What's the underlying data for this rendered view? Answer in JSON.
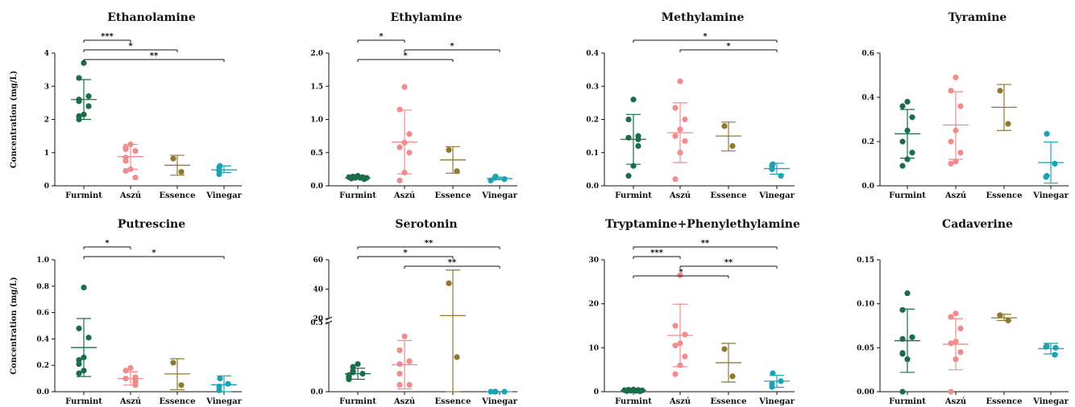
{
  "chart_data": [
    {
      "type": "scatter",
      "title": "Ethanolamine",
      "ylabel": "Concentration (mg/L)",
      "ylim": [
        0,
        4
      ],
      "yticks": [
        0,
        1,
        2,
        3,
        4
      ],
      "categories": [
        "Furmint",
        "Aszú",
        "Essence",
        "Vinegar"
      ],
      "groups": [
        {
          "points": [
            3.7,
            3.25,
            2.7,
            2.6,
            2.55,
            2.4,
            2.15,
            2.1,
            2.0
          ],
          "mean": 2.6,
          "sd_low": 2.0,
          "sd_high": 3.2
        },
        {
          "points": [
            1.25,
            1.15,
            1.1,
            1.05,
            0.85,
            0.75,
            0.5,
            0.45,
            0.25
          ],
          "mean": 0.88,
          "sd_low": 0.5,
          "sd_high": 1.25
        },
        {
          "points": [
            0.82,
            0.42
          ],
          "mean": 0.62,
          "sd_low": 0.32,
          "sd_high": 0.92
        },
        {
          "points": [
            0.6,
            0.55,
            0.45,
            0.35
          ],
          "mean": 0.48,
          "sd_low": 0.4,
          "sd_high": 0.6
        }
      ],
      "significance": [
        {
          "from": "Furmint",
          "to": "Aszú",
          "label": "***"
        },
        {
          "from": "Furmint",
          "to": "Essence",
          "label": "*"
        },
        {
          "from": "Furmint",
          "to": "Vinegar",
          "label": "**"
        }
      ]
    },
    {
      "type": "scatter",
      "title": "Ethylamine",
      "ylabel": "",
      "ylim": [
        0,
        2
      ],
      "yticks": [
        0.0,
        0.5,
        1.0,
        1.5,
        2.0
      ],
      "categories": [
        "Furmint",
        "Aszú",
        "Essence",
        "Vinegar"
      ],
      "groups": [
        {
          "points": [
            0.15,
            0.14,
            0.13,
            0.13,
            0.12,
            0.12,
            0.12,
            0.11,
            0.1
          ],
          "mean": 0.12,
          "sd_low": 0.11,
          "sd_high": 0.14
        },
        {
          "points": [
            1.49,
            1.15,
            0.78,
            0.65,
            0.58,
            0.5,
            0.2,
            0.08
          ],
          "mean": 0.66,
          "sd_low": 0.18,
          "sd_high": 1.14
        },
        {
          "points": [
            0.54,
            0.22
          ],
          "mean": 0.39,
          "sd_low": 0.19,
          "sd_high": 0.59
        },
        {
          "points": [
            0.14,
            0.12,
            0.1,
            0.08
          ],
          "mean": 0.11,
          "sd_low": 0.09,
          "sd_high": 0.13
        }
      ],
      "significance": [
        {
          "from": "Furmint",
          "to": "Aszú",
          "label": "*"
        },
        {
          "from": "Aszú",
          "to": "Vinegar",
          "label": "*"
        },
        {
          "from": "Furmint",
          "to": "Essence",
          "label": "*"
        }
      ]
    },
    {
      "type": "scatter",
      "title": "Methylamine",
      "ylabel": "",
      "ylim": [
        0,
        0.4
      ],
      "yticks": [
        0.0,
        0.1,
        0.2,
        0.3,
        0.4
      ],
      "categories": [
        "Furmint",
        "Aszú",
        "Essence",
        "Vinegar"
      ],
      "groups": [
        {
          "points": [
            0.26,
            0.2,
            0.15,
            0.145,
            0.14,
            0.12,
            0.06,
            0.03
          ],
          "mean": 0.14,
          "sd_low": 0.065,
          "sd_high": 0.215
        },
        {
          "points": [
            0.315,
            0.235,
            0.2,
            0.17,
            0.15,
            0.135,
            0.1,
            0.02
          ],
          "mean": 0.16,
          "sd_low": 0.07,
          "sd_high": 0.25
        },
        {
          "points": [
            0.18,
            0.12
          ],
          "mean": 0.15,
          "sd_low": 0.105,
          "sd_high": 0.192
        },
        {
          "points": [
            0.065,
            0.06,
            0.05,
            0.03
          ],
          "mean": 0.052,
          "sd_low": 0.035,
          "sd_high": 0.068
        }
      ],
      "significance": [
        {
          "from": "Furmint",
          "to": "Vinegar",
          "label": "*"
        },
        {
          "from": "Aszú",
          "to": "Vinegar",
          "label": "*"
        }
      ]
    },
    {
      "type": "scatter",
      "title": "Tyramine",
      "ylabel": "",
      "ylim": [
        0,
        0.6
      ],
      "yticks": [
        0.0,
        0.2,
        0.4,
        0.6
      ],
      "categories": [
        "Furmint",
        "Aszú",
        "Essence",
        "Vinegar"
      ],
      "groups": [
        {
          "points": [
            0.38,
            0.36,
            0.31,
            0.25,
            0.2,
            0.15,
            0.12,
            0.09
          ],
          "mean": 0.235,
          "sd_low": 0.125,
          "sd_high": 0.345
        },
        {
          "points": [
            0.49,
            0.43,
            0.36,
            0.25,
            0.2,
            0.15,
            0.11,
            0.1
          ],
          "mean": 0.275,
          "sd_low": 0.12,
          "sd_high": 0.425
        },
        {
          "points": [
            0.43,
            0.28
          ],
          "mean": 0.355,
          "sd_low": 0.25,
          "sd_high": 0.458
        },
        {
          "points": [
            0.235,
            0.1,
            0.045,
            0.04
          ],
          "mean": 0.105,
          "sd_low": 0.012,
          "sd_high": 0.198
        }
      ],
      "significance": []
    },
    {
      "type": "scatter",
      "title": "Putrescine",
      "ylabel": "Concentration (mg/L)",
      "ylim": [
        0,
        1
      ],
      "yticks": [
        0.0,
        0.2,
        0.4,
        0.6,
        0.8,
        1.0
      ],
      "categories": [
        "Furmint",
        "Aszú",
        "Essence",
        "Vinegar"
      ],
      "groups": [
        {
          "points": [
            0.79,
            0.48,
            0.41,
            0.26,
            0.24,
            0.21,
            0.16,
            0.14
          ],
          "mean": 0.335,
          "sd_low": 0.115,
          "sd_high": 0.555
        },
        {
          "points": [
            0.18,
            0.16,
            0.11,
            0.1,
            0.09,
            0.07,
            0.06,
            0.05
          ],
          "mean": 0.1,
          "sd_low": 0.05,
          "sd_high": 0.15
        },
        {
          "points": [
            0.22,
            0.05
          ],
          "mean": 0.135,
          "sd_low": 0.015,
          "sd_high": 0.25
        },
        {
          "points": [
            0.1,
            0.06,
            0.04,
            0.01
          ],
          "mean": 0.053,
          "sd_low": 0.0,
          "sd_high": 0.12
        }
      ],
      "significance": [
        {
          "from": "Furmint",
          "to": "Aszú",
          "label": "*"
        },
        {
          "from": "Furmint",
          "to": "Vinegar",
          "label": "*"
        }
      ]
    },
    {
      "type": "scatter",
      "title": "Serotonin",
      "ylabel": "",
      "broken_axis": {
        "lower_ylim": [
          0,
          0.5
        ],
        "lower_yticks": [
          0.0,
          0.5
        ],
        "upper_ylim": [
          20,
          60
        ],
        "upper_yticks": [
          20,
          40,
          60
        ]
      },
      "categories": [
        "Furmint",
        "Aszú",
        "Essence",
        "Vinegar"
      ],
      "groups": [
        {
          "points": [
            0.2,
            0.18,
            0.15,
            0.14,
            0.13,
            0.12,
            0.11,
            0.1,
            0.09
          ],
          "mean": 0.13,
          "sd_low": 0.09,
          "sd_high": 0.17
        },
        {
          "points": [
            0.4,
            0.3,
            0.22,
            0.2,
            0.13,
            0.05,
            0.05
          ],
          "mean": 0.195,
          "sd_low": 0.02,
          "sd_high": 0.37
        },
        {
          "points": [
            44,
            0.25
          ],
          "mean": 22,
          "sd_low": 0.0,
          "sd_high": 53
        },
        {
          "points": [
            0.0,
            0.0,
            0.0,
            0.0
          ],
          "mean": 0.0,
          "sd_low": 0.0,
          "sd_high": 0.0
        }
      ],
      "significance": [
        {
          "from": "Furmint",
          "to": "Vinegar",
          "label": "**"
        },
        {
          "from": "Furmint",
          "to": "Essence",
          "label": "*"
        },
        {
          "from": "Aszú",
          "to": "Vinegar",
          "label": "**"
        }
      ]
    },
    {
      "type": "scatter",
      "title": "Tryptamine+Phenylethylamine",
      "ylabel": "",
      "ylim": [
        0,
        30
      ],
      "yticks": [
        0,
        10,
        20,
        30
      ],
      "categories": [
        "Furmint",
        "Aszú",
        "Essence",
        "Vinegar"
      ],
      "groups": [
        {
          "points": [
            0.5,
            0.45,
            0.4,
            0.35,
            0.3,
            0.25,
            0.2,
            0.15,
            0.1
          ],
          "mean": 0.3,
          "sd_low": 0.1,
          "sd_high": 0.5
        },
        {
          "points": [
            26.5,
            15,
            13,
            11,
            10.5,
            8,
            6,
            4
          ],
          "mean": 12.8,
          "sd_low": 5.7,
          "sd_high": 19.9
        },
        {
          "points": [
            9.7,
            3.5
          ],
          "mean": 6.6,
          "sd_low": 2.2,
          "sd_high": 11
        },
        {
          "points": [
            4.2,
            2.4,
            1.8,
            1.1
          ],
          "mean": 2.4,
          "sd_low": 1.0,
          "sd_high": 3.7
        }
      ],
      "significance": [
        {
          "from": "Furmint",
          "to": "Vinegar",
          "label": "**"
        },
        {
          "from": "Furmint",
          "to": "Aszú",
          "label": "***"
        },
        {
          "from": "Aszú",
          "to": "Vinegar",
          "label": "**"
        },
        {
          "from": "Furmint",
          "to": "Essence",
          "label": "*"
        }
      ]
    },
    {
      "type": "scatter",
      "title": "Cadaverine",
      "ylabel": "",
      "ylim": [
        0,
        0.15
      ],
      "yticks": [
        0.0,
        0.05,
        0.1,
        0.15
      ],
      "categories": [
        "Furmint",
        "Aszú",
        "Essence",
        "Vinegar"
      ],
      "groups": [
        {
          "points": [
            0.112,
            0.093,
            0.062,
            0.06,
            0.044,
            0.043,
            0.037,
            0.0
          ],
          "mean": 0.058,
          "sd_low": 0.022,
          "sd_high": 0.094
        },
        {
          "points": [
            0.089,
            0.085,
            0.072,
            0.057,
            0.055,
            0.045,
            0.037,
            0.0
          ],
          "mean": 0.054,
          "sd_low": 0.025,
          "sd_high": 0.083
        },
        {
          "points": [
            0.087,
            0.081
          ],
          "mean": 0.084,
          "sd_low": 0.081,
          "sd_high": 0.088
        },
        {
          "points": [
            0.052,
            0.051,
            0.05,
            0.042
          ],
          "mean": 0.049,
          "sd_low": 0.043,
          "sd_high": 0.055
        }
      ],
      "significance": []
    }
  ],
  "colors": {
    "Furmint": "#1a6e47",
    "Aszú": "#f28b8b",
    "Essence": "#8c7a30",
    "Vinegar": "#1aa3b3"
  }
}
